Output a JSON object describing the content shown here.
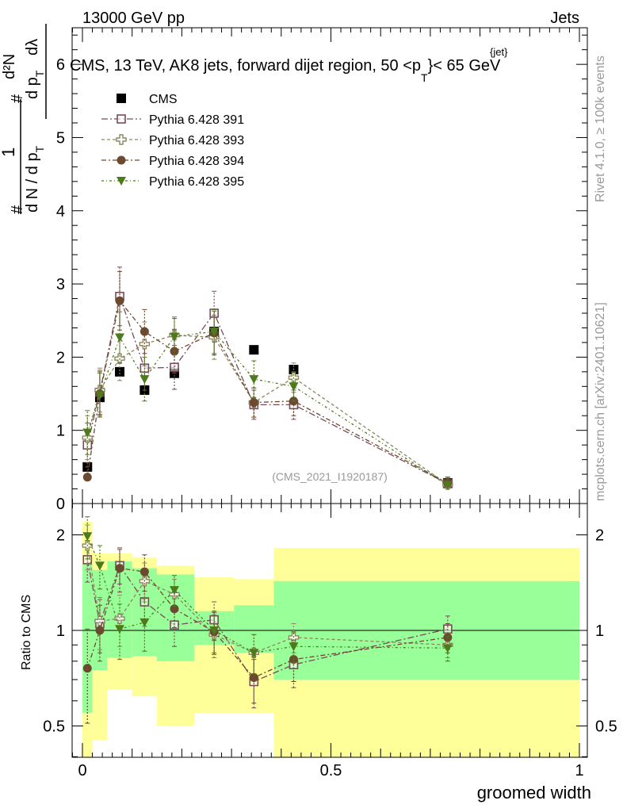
{
  "header": {
    "left": "13000 GeV pp",
    "right": "Jets"
  },
  "main_title": "CMS, 13 TeV, AK8 jets, forward dijet region, 50 <p",
  "main_title_sup": "{jet}",
  "main_title_sub": "T",
  "main_title_end": "}< 65 GeV",
  "analysis_label": "(CMS_2021_I1920187)",
  "side_labels": {
    "rivet": "Rivet 4.1.0, ≥ 100k events",
    "mcplots": "mcplots.cern.ch [arXiv:2401.10621]"
  },
  "ylabel_top_parts": [
    "#",
    "1",
    "d N / d p",
    "T",
    "#",
    "d p",
    "T",
    "d²N",
    "dλ"
  ],
  "ylabel_ratio": "Ratio to CMS",
  "colors": {
    "cms": "#000000",
    "p391": "#7a4b5a",
    "p393": "#8c8660",
    "p394": "#6b4a30",
    "p395": "#4d7a1a",
    "band_inner": "#99ff99",
    "band_outer": "#ffff99"
  },
  "chart_data": [
    {
      "type": "scatter",
      "panel": "main",
      "xlabel": "groomed width",
      "xlim": [
        -0.02,
        1.0
      ],
      "ylim": [
        0,
        6.5
      ],
      "yticks": [
        0,
        1,
        2,
        3,
        4,
        5,
        6
      ],
      "xticks": [
        0,
        0.5,
        1
      ],
      "xticklabels": [
        "0",
        "0.5",
        "1"
      ],
      "x": [
        0.01,
        0.035,
        0.075,
        0.125,
        0.185,
        0.265,
        0.345,
        0.425,
        0.735
      ],
      "series": [
        {
          "name": "CMS",
          "marker": "square-filled",
          "values": [
            0.5,
            1.45,
            1.8,
            1.55,
            1.78,
            2.35,
            2.1,
            1.83,
            0.28
          ],
          "err": [
            0.05,
            0.05,
            0.05,
            0.05,
            0.05,
            0.05,
            0.05,
            0.05,
            0.02
          ]
        },
        {
          "name": "Pythia 6.428 391",
          "marker": "square-open",
          "values": [
            0.8,
            1.52,
            2.83,
            1.85,
            1.86,
            2.6,
            1.35,
            1.35,
            0.27
          ],
          "err": [
            0.3,
            0.3,
            0.4,
            0.3,
            0.3,
            0.3,
            0.2,
            0.2,
            0.05
          ]
        },
        {
          "name": "Pythia 6.428 393",
          "marker": "cross-open",
          "values": [
            0.9,
            1.55,
            1.98,
            2.18,
            2.3,
            2.27,
            1.38,
            1.72,
            0.26
          ],
          "err": [
            0.3,
            0.3,
            0.3,
            0.3,
            0.25,
            0.3,
            0.2,
            0.2,
            0.05
          ]
        },
        {
          "name": "Pythia 6.428 394",
          "marker": "circle-filled",
          "values": [
            0.36,
            1.5,
            2.77,
            2.35,
            2.08,
            2.33,
            1.38,
            1.4,
            0.28
          ],
          "err": [
            0.2,
            0.3,
            0.4,
            0.3,
            0.3,
            0.3,
            0.2,
            0.2,
            0.05
          ]
        },
        {
          "name": "Pythia 6.428 395",
          "marker": "triangle-down-filled",
          "values": [
            0.97,
            1.48,
            2.27,
            1.7,
            2.28,
            2.35,
            1.7,
            1.6,
            0.25
          ],
          "err": [
            0.3,
            0.3,
            0.35,
            0.3,
            0.25,
            0.3,
            0.25,
            0.2,
            0.05
          ]
        }
      ]
    },
    {
      "type": "scatter",
      "panel": "ratio",
      "xlabel": "groomed width",
      "ylabel": "Ratio to CMS",
      "ylim": [
        0.35,
        2.35
      ],
      "yticks": [
        0.5,
        1,
        2
      ],
      "yticklabels": [
        "0.5",
        "1",
        "2"
      ],
      "x": [
        0.01,
        0.035,
        0.075,
        0.125,
        0.185,
        0.265,
        0.345,
        0.425,
        0.735
      ],
      "bands": [
        {
          "x0": 0.0,
          "x1": 0.02,
          "inner": [
            0.55,
            1.62
          ],
          "outer": [
            0.3,
            2.2
          ]
        },
        {
          "x0": 0.02,
          "x1": 0.05,
          "inner": [
            0.75,
            1.55
          ],
          "outer": [
            0.45,
            1.75
          ]
        },
        {
          "x0": 0.05,
          "x1": 0.1,
          "inner": [
            0.82,
            1.65
          ],
          "outer": [
            0.65,
            1.75
          ]
        },
        {
          "x0": 0.1,
          "x1": 0.15,
          "inner": [
            0.83,
            1.57
          ],
          "outer": [
            0.62,
            1.7
          ]
        },
        {
          "x0": 0.15,
          "x1": 0.225,
          "inner": [
            0.8,
            1.5
          ],
          "outer": [
            0.5,
            1.6
          ]
        },
        {
          "x0": 0.225,
          "x1": 0.305,
          "inner": [
            0.9,
            1.15
          ],
          "outer": [
            0.55,
            1.47
          ]
        },
        {
          "x0": 0.305,
          "x1": 0.385,
          "inner": [
            0.85,
            1.2
          ],
          "outer": [
            0.55,
            1.45
          ]
        },
        {
          "x0": 0.385,
          "x1": 1.0,
          "inner": [
            0.7,
            1.43
          ],
          "outer": [
            0.35,
            1.82
          ]
        }
      ],
      "series": [
        {
          "name": "Pythia 6.428 391",
          "values": [
            1.67,
            1.05,
            1.6,
            1.23,
            1.04,
            1.08,
            0.69,
            0.78,
            1.01
          ],
          "err": [
            0.25,
            0.2,
            0.2,
            0.2,
            0.15,
            0.15,
            0.12,
            0.12,
            0.1
          ]
        },
        {
          "name": "Pythia 6.428 393",
          "values": [
            1.85,
            1.07,
            1.09,
            1.43,
            1.3,
            0.97,
            0.85,
            0.95,
            0.9
          ],
          "err": [
            0.3,
            0.2,
            0.2,
            0.2,
            0.15,
            0.15,
            0.12,
            0.1,
            0.08
          ]
        },
        {
          "name": "Pythia 6.428 394",
          "values": [
            0.76,
            1.0,
            1.57,
            1.53,
            1.17,
            0.99,
            0.71,
            0.81,
            0.95
          ],
          "err": [
            0.25,
            0.2,
            0.25,
            0.2,
            0.15,
            0.15,
            0.12,
            0.12,
            0.1
          ]
        },
        {
          "name": "Pythia 6.428 395",
          "values": [
            1.98,
            1.6,
            1.01,
            1.06,
            1.34,
            1.0,
            0.85,
            0.89,
            0.88
          ],
          "err": [
            0.3,
            0.25,
            0.2,
            0.2,
            0.15,
            0.15,
            0.12,
            0.1,
            0.08
          ]
        }
      ]
    }
  ]
}
